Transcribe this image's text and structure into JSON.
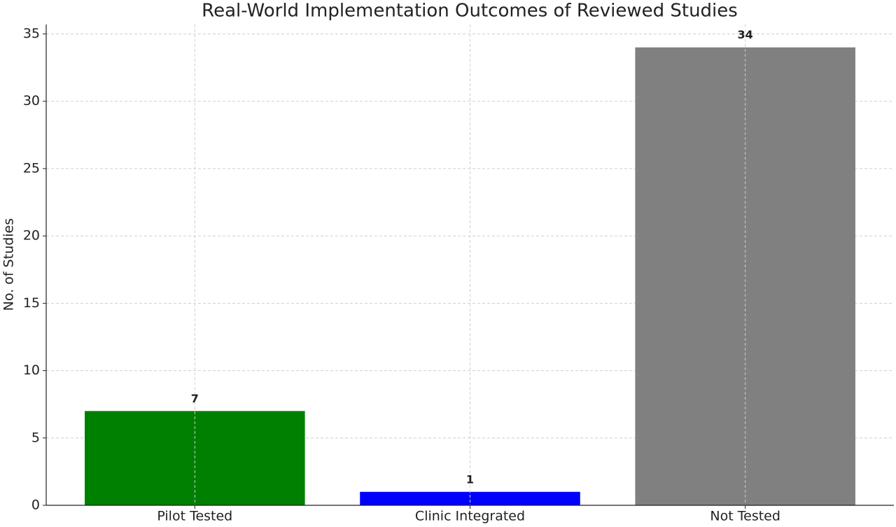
{
  "chart_data": {
    "type": "bar",
    "title": "Real-World Implementation Outcomes of Reviewed Studies",
    "ylabel": "No. of Studies",
    "categories": [
      "Pilot Tested",
      "Clinic Integrated",
      "Not Tested"
    ],
    "values": [
      7,
      1,
      34
    ],
    "colors": [
      "#008000",
      "#0000ff",
      "#808080"
    ],
    "ylim": [
      0,
      35.7
    ],
    "yticks": [
      0,
      5,
      10,
      15,
      20,
      25,
      30,
      35
    ],
    "grid": true
  }
}
